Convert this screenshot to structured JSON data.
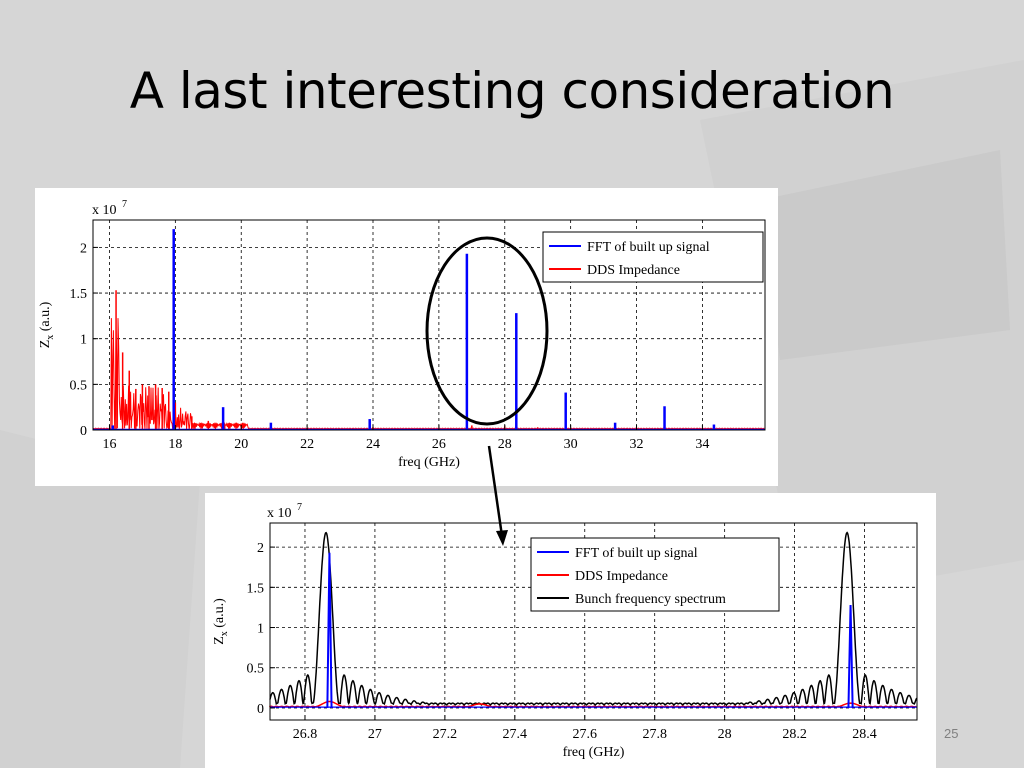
{
  "slide": {
    "title": "A last interesting consideration",
    "slide_number": "25"
  },
  "colors": {
    "background": "#d6d6d6",
    "fft": "#0000ff",
    "dds": "#ff0000",
    "bunch": "#000000"
  },
  "chart_data": [
    {
      "type": "line",
      "title": "",
      "xlabel": "freq (GHz)",
      "ylabel_main": "Z",
      "ylabel_sub": "x",
      "ylabel_units": " (a.u.)",
      "exponent_base": "x 10",
      "exponent_power": "7",
      "xlim": [
        15.5,
        35.9
      ],
      "ylim": [
        0,
        2.3
      ],
      "xticks": [
        16,
        18,
        20,
        22,
        24,
        26,
        28,
        30,
        32,
        34
      ],
      "yticks": [
        0,
        0.5,
        1,
        1.5,
        2
      ],
      "ytick_labels": [
        "0",
        "0.5",
        "1",
        "1.5",
        "2"
      ],
      "grid": true,
      "legend_position": "top-right",
      "series": [
        {
          "name": "FFT of built up signal",
          "color": "#0000ff",
          "x": [
            16.1,
            17.95,
            19.45,
            20.9,
            23.9,
            26.85,
            28.35,
            29.85,
            31.35,
            32.85,
            34.35
          ],
          "y": [
            0.05,
            2.2,
            0.25,
            0.08,
            0.12,
            1.93,
            1.28,
            0.41,
            0.08,
            0.26,
            0.06
          ]
        },
        {
          "name": "DDS Impedance",
          "color": "#ff0000",
          "x": [
            16.2,
            16.4,
            16.6,
            16.8,
            17.0,
            17.2,
            17.4,
            17.6,
            17.8,
            18.0,
            18.5,
            19.0,
            19.5,
            20.0,
            24.0,
            27.0,
            28.0,
            29.0,
            30.0
          ],
          "y": [
            1.53,
            0.85,
            0.65,
            0.45,
            0.5,
            0.48,
            0.5,
            0.46,
            0.42,
            0.3,
            0.15,
            0.1,
            0.06,
            0.04,
            0.03,
            0.05,
            0.04,
            0.03,
            0.02
          ]
        }
      ]
    },
    {
      "type": "line",
      "title": "",
      "xlabel": "freq (GHz)",
      "ylabel_main": "Z",
      "ylabel_sub": "x",
      "ylabel_units": " (a.u.)",
      "exponent_base": "x 10",
      "exponent_power": "7",
      "xlim": [
        26.7,
        28.55
      ],
      "ylim": [
        -0.15,
        2.3
      ],
      "xticks": [
        26.8,
        27,
        27.2,
        27.4,
        27.6,
        27.8,
        28,
        28.2,
        28.4
      ],
      "xtick_labels": [
        "26.8",
        "27",
        "27.2",
        "27.4",
        "27.6",
        "27.8",
        "28",
        "28.2",
        "28.4"
      ],
      "yticks": [
        0,
        0.5,
        1,
        1.5,
        2
      ],
      "ytick_labels": [
        "0",
        "0.5",
        "1",
        "1.5",
        "2"
      ],
      "grid": true,
      "legend_position": "top-right",
      "series": [
        {
          "name": "FFT of built up signal",
          "color": "#0000ff",
          "peaks": [
            {
              "x": 26.87,
              "y": 1.93
            },
            {
              "x": 28.36,
              "y": 1.28
            }
          ]
        },
        {
          "name": "DDS Impedance",
          "color": "#ff0000",
          "peaks": [
            {
              "x": 26.87,
              "y": 0.08
            },
            {
              "x": 27.3,
              "y": 0.05
            },
            {
              "x": 28.36,
              "y": 0.06
            }
          ]
        },
        {
          "name": "Bunch frequency spectrum",
          "color": "#000000",
          "peaks": [
            {
              "x": 26.86,
              "y": 2.18
            },
            {
              "x": 28.35,
              "y": 2.18
            }
          ],
          "main_lobe_halfwidth": 0.04,
          "sidelobe_period": 0.025
        }
      ]
    }
  ]
}
